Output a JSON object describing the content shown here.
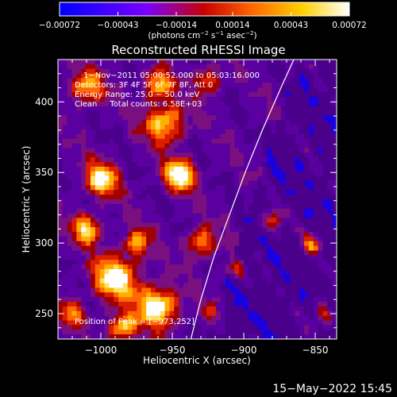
{
  "chart_data": {
    "type": "heatmap",
    "title": "Reconstructed RHESSI Image",
    "xlabel": "Heliocentric X (arcsec)",
    "ylabel": "Heliocentric Y (arcsec)",
    "xlim": [
      -1030,
      -835
    ],
    "ylim": [
      232,
      430
    ],
    "x_ticks": [
      -1000,
      -950,
      -900,
      -850
    ],
    "y_ticks": [
      250,
      300,
      350,
      400
    ],
    "x_tick_labels": [
      "−1000",
      "−950",
      "−900",
      "−850"
    ],
    "y_tick_labels": [
      "250",
      "300",
      "350",
      "400"
    ],
    "grid": false,
    "colorbar": {
      "ticks": [
        -0.00072,
        -0.00043,
        -0.00014,
        0.00014,
        0.00043,
        0.00072
      ],
      "tick_labels": [
        "−0.00072",
        "−0.00043",
        "−0.00014",
        "0.00014",
        "0.00043",
        "0.00072"
      ],
      "range": [
        -0.00072,
        0.00072
      ],
      "colors": [
        "#0000ff",
        "#7a00ff",
        "#c80000",
        "#ff6400",
        "#ffd200",
        "#ffffff"
      ]
    },
    "unit_parts": {
      "pre": "(photons cm",
      "exp1": "−2",
      "mid": " s",
      "exp2": "−1",
      "mid2": " asec",
      "exp3": "−2",
      "post": ")"
    },
    "annotations": [
      "1−Nov−2011 05:00:52.000 to 05:03:16.000",
      "Detectors: 3F 4F 5F 6F 7F 8F, Att 0",
      "Energy Range: 25.0 − 50.0 keV",
      "Clean     Total counts: 6.58E+03"
    ],
    "peak_label": "Position of Peak = [−973,252]",
    "peak": [
      -973,
      252
    ],
    "limb_curve": [
      [
        -937,
        232
      ],
      [
        -930,
        260
      ],
      [
        -921,
        290
      ],
      [
        -910,
        320
      ],
      [
        -899,
        350
      ],
      [
        -887,
        380
      ],
      [
        -874,
        410
      ],
      [
        -865,
        430
      ]
    ]
  },
  "timestamp": "15−May−2022 15:45"
}
